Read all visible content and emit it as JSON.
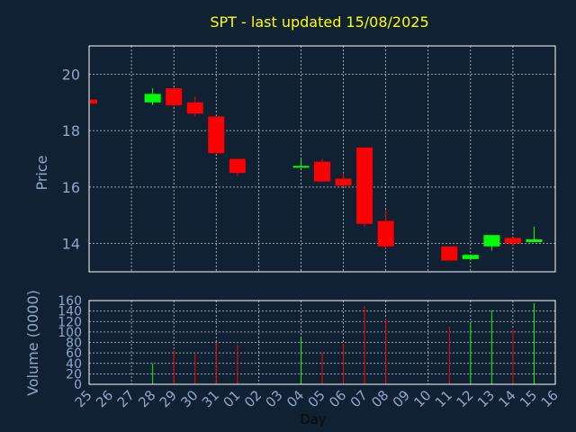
{
  "chart_data": {
    "type": "candlestick",
    "title": "SPT - last updated 15/08/2025",
    "xlabel": "Day",
    "ylabel": "Price",
    "volume_label": "Volume (0000)",
    "grid": true,
    "x": [
      "25",
      "26",
      "27",
      "28",
      "29",
      "30",
      "31",
      "01",
      "02",
      "03",
      "04",
      "05",
      "06",
      "07",
      "08",
      "09",
      "10",
      "11",
      "12",
      "13",
      "14",
      "15",
      "16"
    ],
    "price_ylim": [
      13,
      21
    ],
    "price_ticks": [
      14,
      16,
      18,
      20
    ],
    "volume_ylim": [
      0,
      160
    ],
    "volume_ticks": [
      0,
      20,
      40,
      60,
      80,
      100,
      120,
      140,
      160
    ],
    "candles": [
      {
        "x": "25",
        "open": 19.1,
        "close": 18.95,
        "high": 19.1,
        "low": 18.95,
        "volume": 0
      },
      {
        "x": "28",
        "open": 19.0,
        "close": 19.3,
        "high": 19.5,
        "low": 18.9,
        "volume": 40
      },
      {
        "x": "29",
        "open": 19.5,
        "close": 18.9,
        "high": 19.5,
        "low": 18.9,
        "volume": 65
      },
      {
        "x": "30",
        "open": 19.0,
        "close": 18.6,
        "high": 19.2,
        "low": 18.5,
        "volume": 58
      },
      {
        "x": "31",
        "open": 18.5,
        "close": 17.2,
        "high": 18.5,
        "low": 17.2,
        "volume": 80
      },
      {
        "x": "01",
        "open": 17.0,
        "close": 16.5,
        "high": 17.0,
        "low": 16.4,
        "volume": 75
      },
      {
        "x": "04",
        "open": 16.7,
        "close": 16.75,
        "high": 17.0,
        "low": 16.7,
        "volume": 90
      },
      {
        "x": "05",
        "open": 16.9,
        "close": 16.2,
        "high": 17.0,
        "low": 16.2,
        "volume": 60
      },
      {
        "x": "06",
        "open": 16.3,
        "close": 16.05,
        "high": 16.5,
        "low": 16.0,
        "volume": 78
      },
      {
        "x": "07",
        "open": 17.4,
        "close": 14.7,
        "high": 17.4,
        "low": 14.6,
        "volume": 150
      },
      {
        "x": "08",
        "open": 14.8,
        "close": 13.9,
        "high": 15.2,
        "low": 13.8,
        "volume": 125
      },
      {
        "x": "11",
        "open": 13.9,
        "close": 13.4,
        "high": 13.9,
        "low": 13.4,
        "volume": 110
      },
      {
        "x": "12",
        "open": 13.45,
        "close": 13.6,
        "high": 13.6,
        "low": 13.4,
        "volume": 118
      },
      {
        "x": "13",
        "open": 13.9,
        "close": 14.3,
        "high": 14.3,
        "low": 13.75,
        "volume": 142
      },
      {
        "x": "14",
        "open": 14.2,
        "close": 14.0,
        "high": 14.2,
        "low": 13.95,
        "volume": 105
      },
      {
        "x": "15",
        "open": 14.05,
        "close": 14.15,
        "high": 14.6,
        "low": 14.05,
        "volume": 155
      }
    ]
  },
  "colors": {
    "background": "#0f2133",
    "frame": "#ffffff",
    "grid": "#c8c8c8",
    "axis_text": "#8fa8c8",
    "title": "#ffff00",
    "up": "#00ff00",
    "down": "#ff0000"
  }
}
